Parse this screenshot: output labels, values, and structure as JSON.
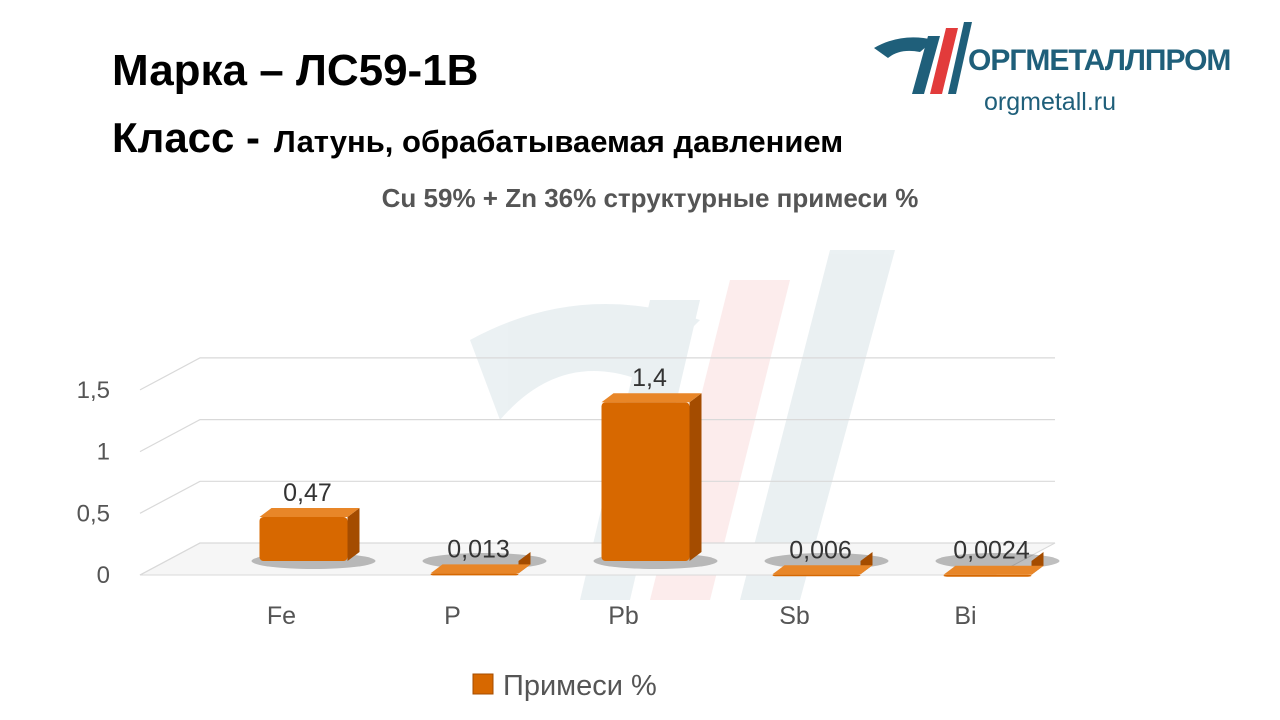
{
  "header": {
    "grade_line": "Марка – ЛС59-1В",
    "class_label": "Класс -",
    "class_value": "Латунь, обрабатываемая давлением"
  },
  "logo": {
    "icon": "company-logo-icon",
    "name": "ОРГМЕТАЛЛПРОМ",
    "url": "orgmetall.ru"
  },
  "colors": {
    "bar": "#d76800",
    "bar_side": "#a44c00",
    "bar_top": "#e88628",
    "logo_blue": "#1f5f7a",
    "logo_red": "#e23b3b",
    "grid": "#d9d9d9",
    "text": "#595959"
  },
  "chart_data": {
    "type": "bar",
    "title": "Cu 59% + Zn 36% структурные примеси %",
    "categories": [
      "Fe",
      "P",
      "Pb",
      "Sb",
      "Bi"
    ],
    "series": [
      {
        "name": "Примеси %",
        "values": [
          0.47,
          0.013,
          1.4,
          0.006,
          0.0024
        ],
        "labels": [
          "0,47",
          "0,013",
          "1,4",
          "0,006",
          "0,0024"
        ]
      }
    ],
    "yticks": [
      "0",
      "0,5",
      "1",
      "1,5"
    ],
    "ylim": [
      0,
      1.5
    ],
    "xlabel": "",
    "ylabel": "",
    "grid": true,
    "legend": "bottom",
    "style": "3d"
  }
}
